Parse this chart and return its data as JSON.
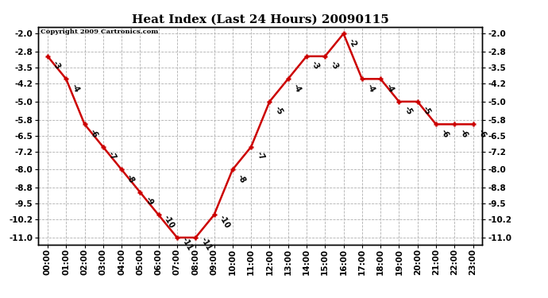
{
  "title": "Heat Index (Last 24 Hours) 20090115",
  "copyright": "Copyright 2009 Cartronics.com",
  "x_labels": [
    "00:00",
    "01:00",
    "02:00",
    "03:00",
    "04:00",
    "05:00",
    "06:00",
    "07:00",
    "08:00",
    "09:00",
    "10:00",
    "11:00",
    "12:00",
    "13:00",
    "14:00",
    "15:00",
    "16:00",
    "17:00",
    "18:00",
    "19:00",
    "20:00",
    "21:00",
    "22:00",
    "23:00"
  ],
  "y_values": [
    -3,
    -4,
    -6,
    -7,
    -8,
    -9,
    -10,
    -11,
    -11,
    -10,
    -8,
    -7,
    -5,
    -4,
    -3,
    -3,
    -2,
    -4,
    -4,
    -5,
    -5,
    -6,
    -6,
    -6
  ],
  "ylim": [
    -11.3,
    -1.7
  ],
  "yticks": [
    -2.0,
    -2.8,
    -3.5,
    -4.2,
    -5.0,
    -5.8,
    -6.5,
    -7.2,
    -8.0,
    -8.8,
    -9.5,
    -10.2,
    -11.0
  ],
  "ytick_labels": [
    "-2.0",
    "-2.8",
    "-3.5",
    "-4.2",
    "-5.0",
    "-5.8",
    "-6.5",
    "-7.2",
    "-8.0",
    "-8.8",
    "-9.5",
    "-10.2",
    "-11.0"
  ],
  "line_color": "#cc0000",
  "marker_color": "#cc0000",
  "bg_color": "#ffffff",
  "grid_color": "#b0b0b0",
  "title_fontsize": 11,
  "annotation_fontsize": 7,
  "tick_fontsize": 7.5
}
